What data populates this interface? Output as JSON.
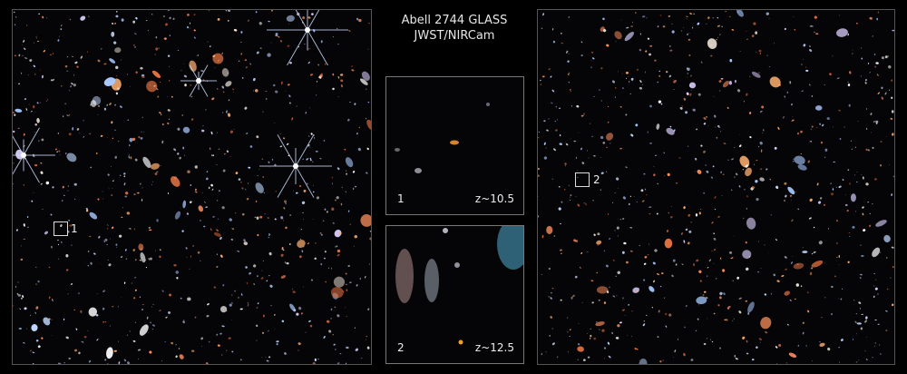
{
  "title": {
    "line1": "Abell 2744 GLASS",
    "line2": "JWST/NIRCam"
  },
  "left_field": {
    "marker_label": "1"
  },
  "right_field": {
    "marker_label": "2"
  },
  "insets": [
    {
      "label": "1",
      "redshift": "z~10.5",
      "galaxy_color": "#e08a30"
    },
    {
      "label": "2",
      "redshift": "z~12.5",
      "galaxy_color": "#f0a020"
    }
  ],
  "colors": {
    "background": "#000000",
    "frame": "#777777"
  }
}
